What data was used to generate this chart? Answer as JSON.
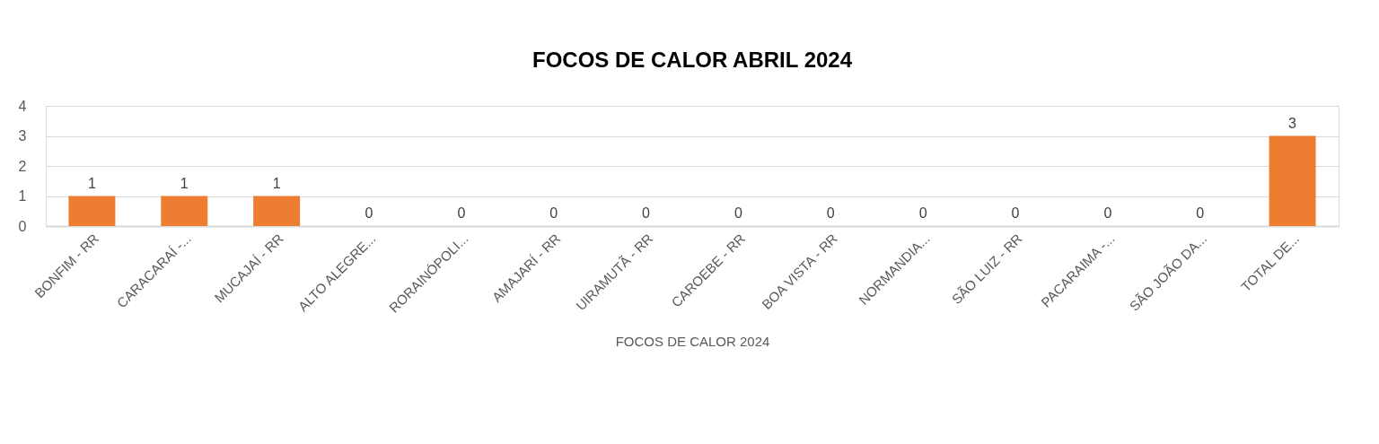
{
  "chart_data": {
    "type": "bar",
    "title": "FOCOS DE CALOR ABRIL 2024",
    "xlabel": "FOCOS DE CALOR 2024",
    "categories": [
      "BONFIM - RR",
      "CARACARAÍ -...",
      "MUCAJAÍ - RR",
      "ALTO ALEGRE...",
      "RORAINÓPOLI...",
      "AMAJARÍ - RR",
      "UIRAMUTÃ - RR",
      "CAROEBE - RR",
      "BOA VISTA - RR",
      "NORMANDIA...",
      "SÃO LUIZ - RR",
      "PACARAIMA -...",
      "SÃO JOÃO DA...",
      "TOTAL DE..."
    ],
    "values": [
      1,
      1,
      1,
      0,
      0,
      0,
      0,
      0,
      0,
      0,
      0,
      0,
      0,
      3
    ],
    "color": "#ed7d31",
    "ylim": [
      0,
      4
    ],
    "yticks": [
      0,
      1,
      2,
      3,
      4
    ],
    "grid": "y",
    "data_labels": true
  }
}
